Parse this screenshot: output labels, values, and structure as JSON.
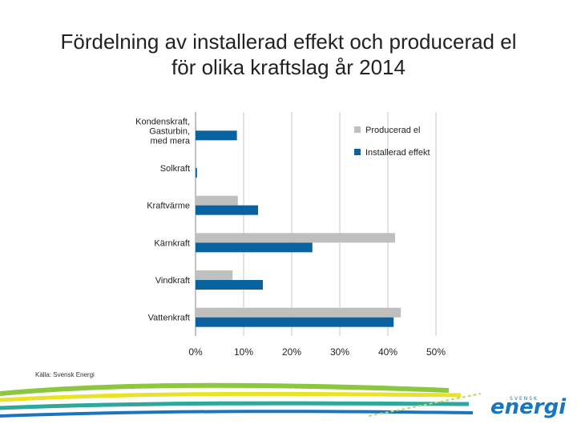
{
  "title_line1": "Fördelning av installerad effekt och producerad el",
  "title_line2": "för olika kraftslag år 2014",
  "source": "Källa: Svensk Energi",
  "logo": {
    "main": "energi",
    "sub": "SVENSK"
  },
  "colors": {
    "producerad": "#bfbfbf",
    "installerad": "#0b62a1",
    "grid": "#dadada",
    "text": "#222222"
  },
  "chart_data": {
    "type": "bar",
    "orientation": "horizontal",
    "title": "Fördelning av installerad effekt och producerad el för olika kraftslag år 2014",
    "categories": [
      [
        "Kondenskraft,",
        "Gasturbin,",
        "med mera"
      ],
      [
        "Solkraft"
      ],
      [
        "Kraftvärme"
      ],
      [
        "Kärnkraft"
      ],
      [
        "Vindkraft"
      ],
      [
        "Vattenkraft"
      ]
    ],
    "series": [
      {
        "name": "Producerad el",
        "values": [
          0.2,
          0,
          8.8,
          41.5,
          7.7,
          42.7
        ]
      },
      {
        "name": "Installerad effekt",
        "values": [
          8.6,
          0.3,
          13,
          24.3,
          14,
          41.2
        ]
      }
    ],
    "xlim": [
      0,
      50
    ],
    "xticks": [
      "0%",
      "10%",
      "20%",
      "30%",
      "40%",
      "50%"
    ],
    "xlabel": "",
    "ylabel": "",
    "grid": true,
    "legend_position": "top-right"
  }
}
